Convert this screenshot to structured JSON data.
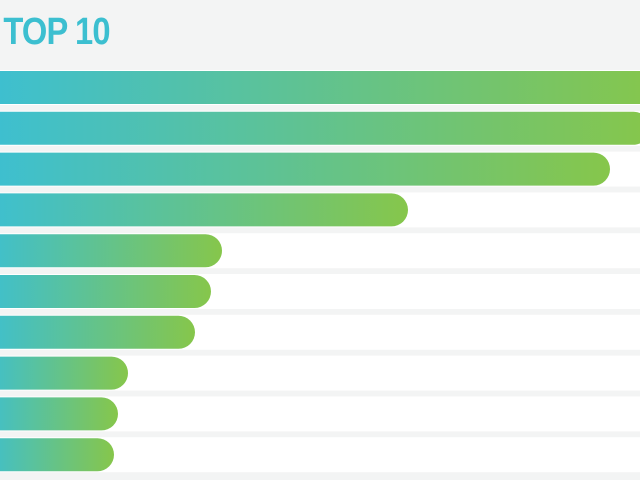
{
  "chart_data": {
    "type": "bar",
    "orientation": "horizontal",
    "title": "TOP 10",
    "values": [
      660,
      650,
      610,
      408,
      222,
      211,
      195,
      128,
      118,
      114
    ],
    "gradient": [
      "#3cbfd3",
      "#86c64b"
    ]
  }
}
